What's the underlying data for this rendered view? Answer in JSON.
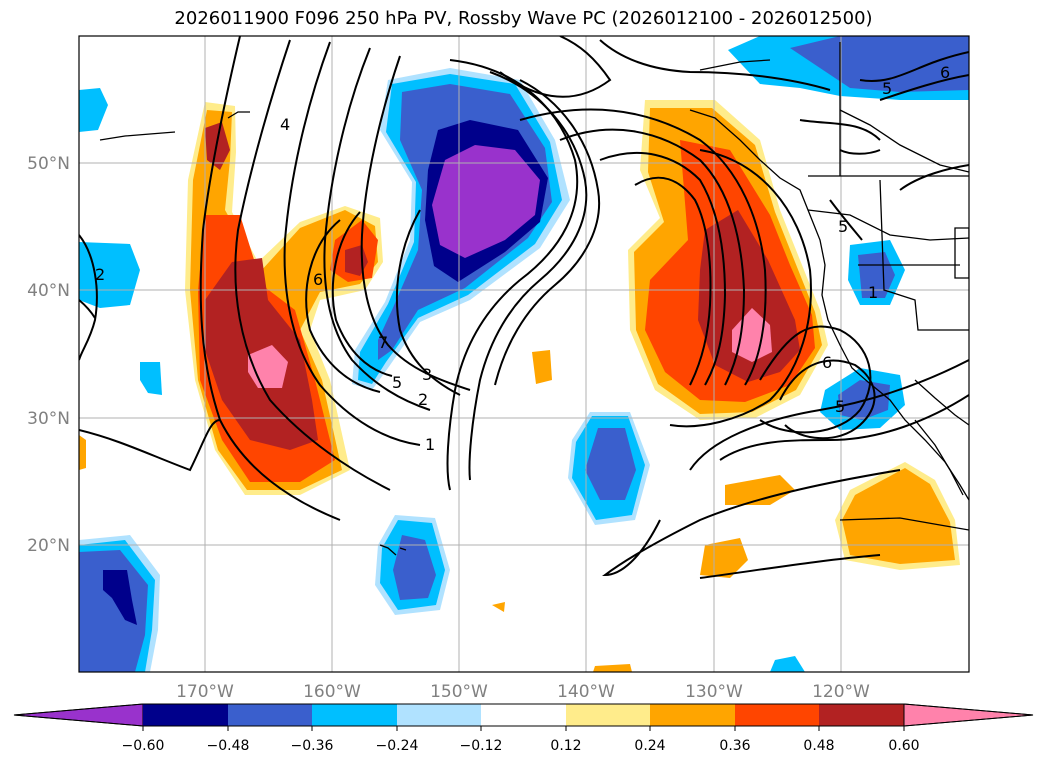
{
  "title": "2026011900 F096 250 hPa PV, Rossby Wave PC (2026012100 - 2026012500)",
  "lat_labels": [
    "50°N",
    "40°N",
    "30°N",
    "20°N"
  ],
  "lon_labels": [
    "170°W",
    "160°W",
    "150°W",
    "140°W",
    "130°W",
    "120°W"
  ],
  "colorbar": {
    "ticks": [
      "−0.60",
      "−0.48",
      "−0.36",
      "−0.24",
      "−0.12",
      "0.12",
      "0.24",
      "0.36",
      "0.48",
      "0.60"
    ],
    "colors": [
      "#9932cc",
      "#00008b",
      "#3a5fcd",
      "#00bfff",
      "#b0e2ff",
      "#ffffff",
      "#ffec8b",
      "#ffa500",
      "#ff4500",
      "#b22222",
      "#ff82ab"
    ]
  },
  "contour_labels": [
    "4",
    "2",
    "6",
    "7",
    "5",
    "3",
    "2",
    "1",
    "1",
    "6",
    "5",
    "5",
    "6",
    "5"
  ],
  "fill_colors": {
    "purple": "#9932cc",
    "navy": "#00008b",
    "royal": "#3a5fcd",
    "sky": "#00bfff",
    "lightblue": "#b0e2ff",
    "yellow": "#ffec8b",
    "orange": "#ffa500",
    "redorange": "#ff4500",
    "firebrick": "#b22222",
    "pink": "#ff82ab"
  }
}
